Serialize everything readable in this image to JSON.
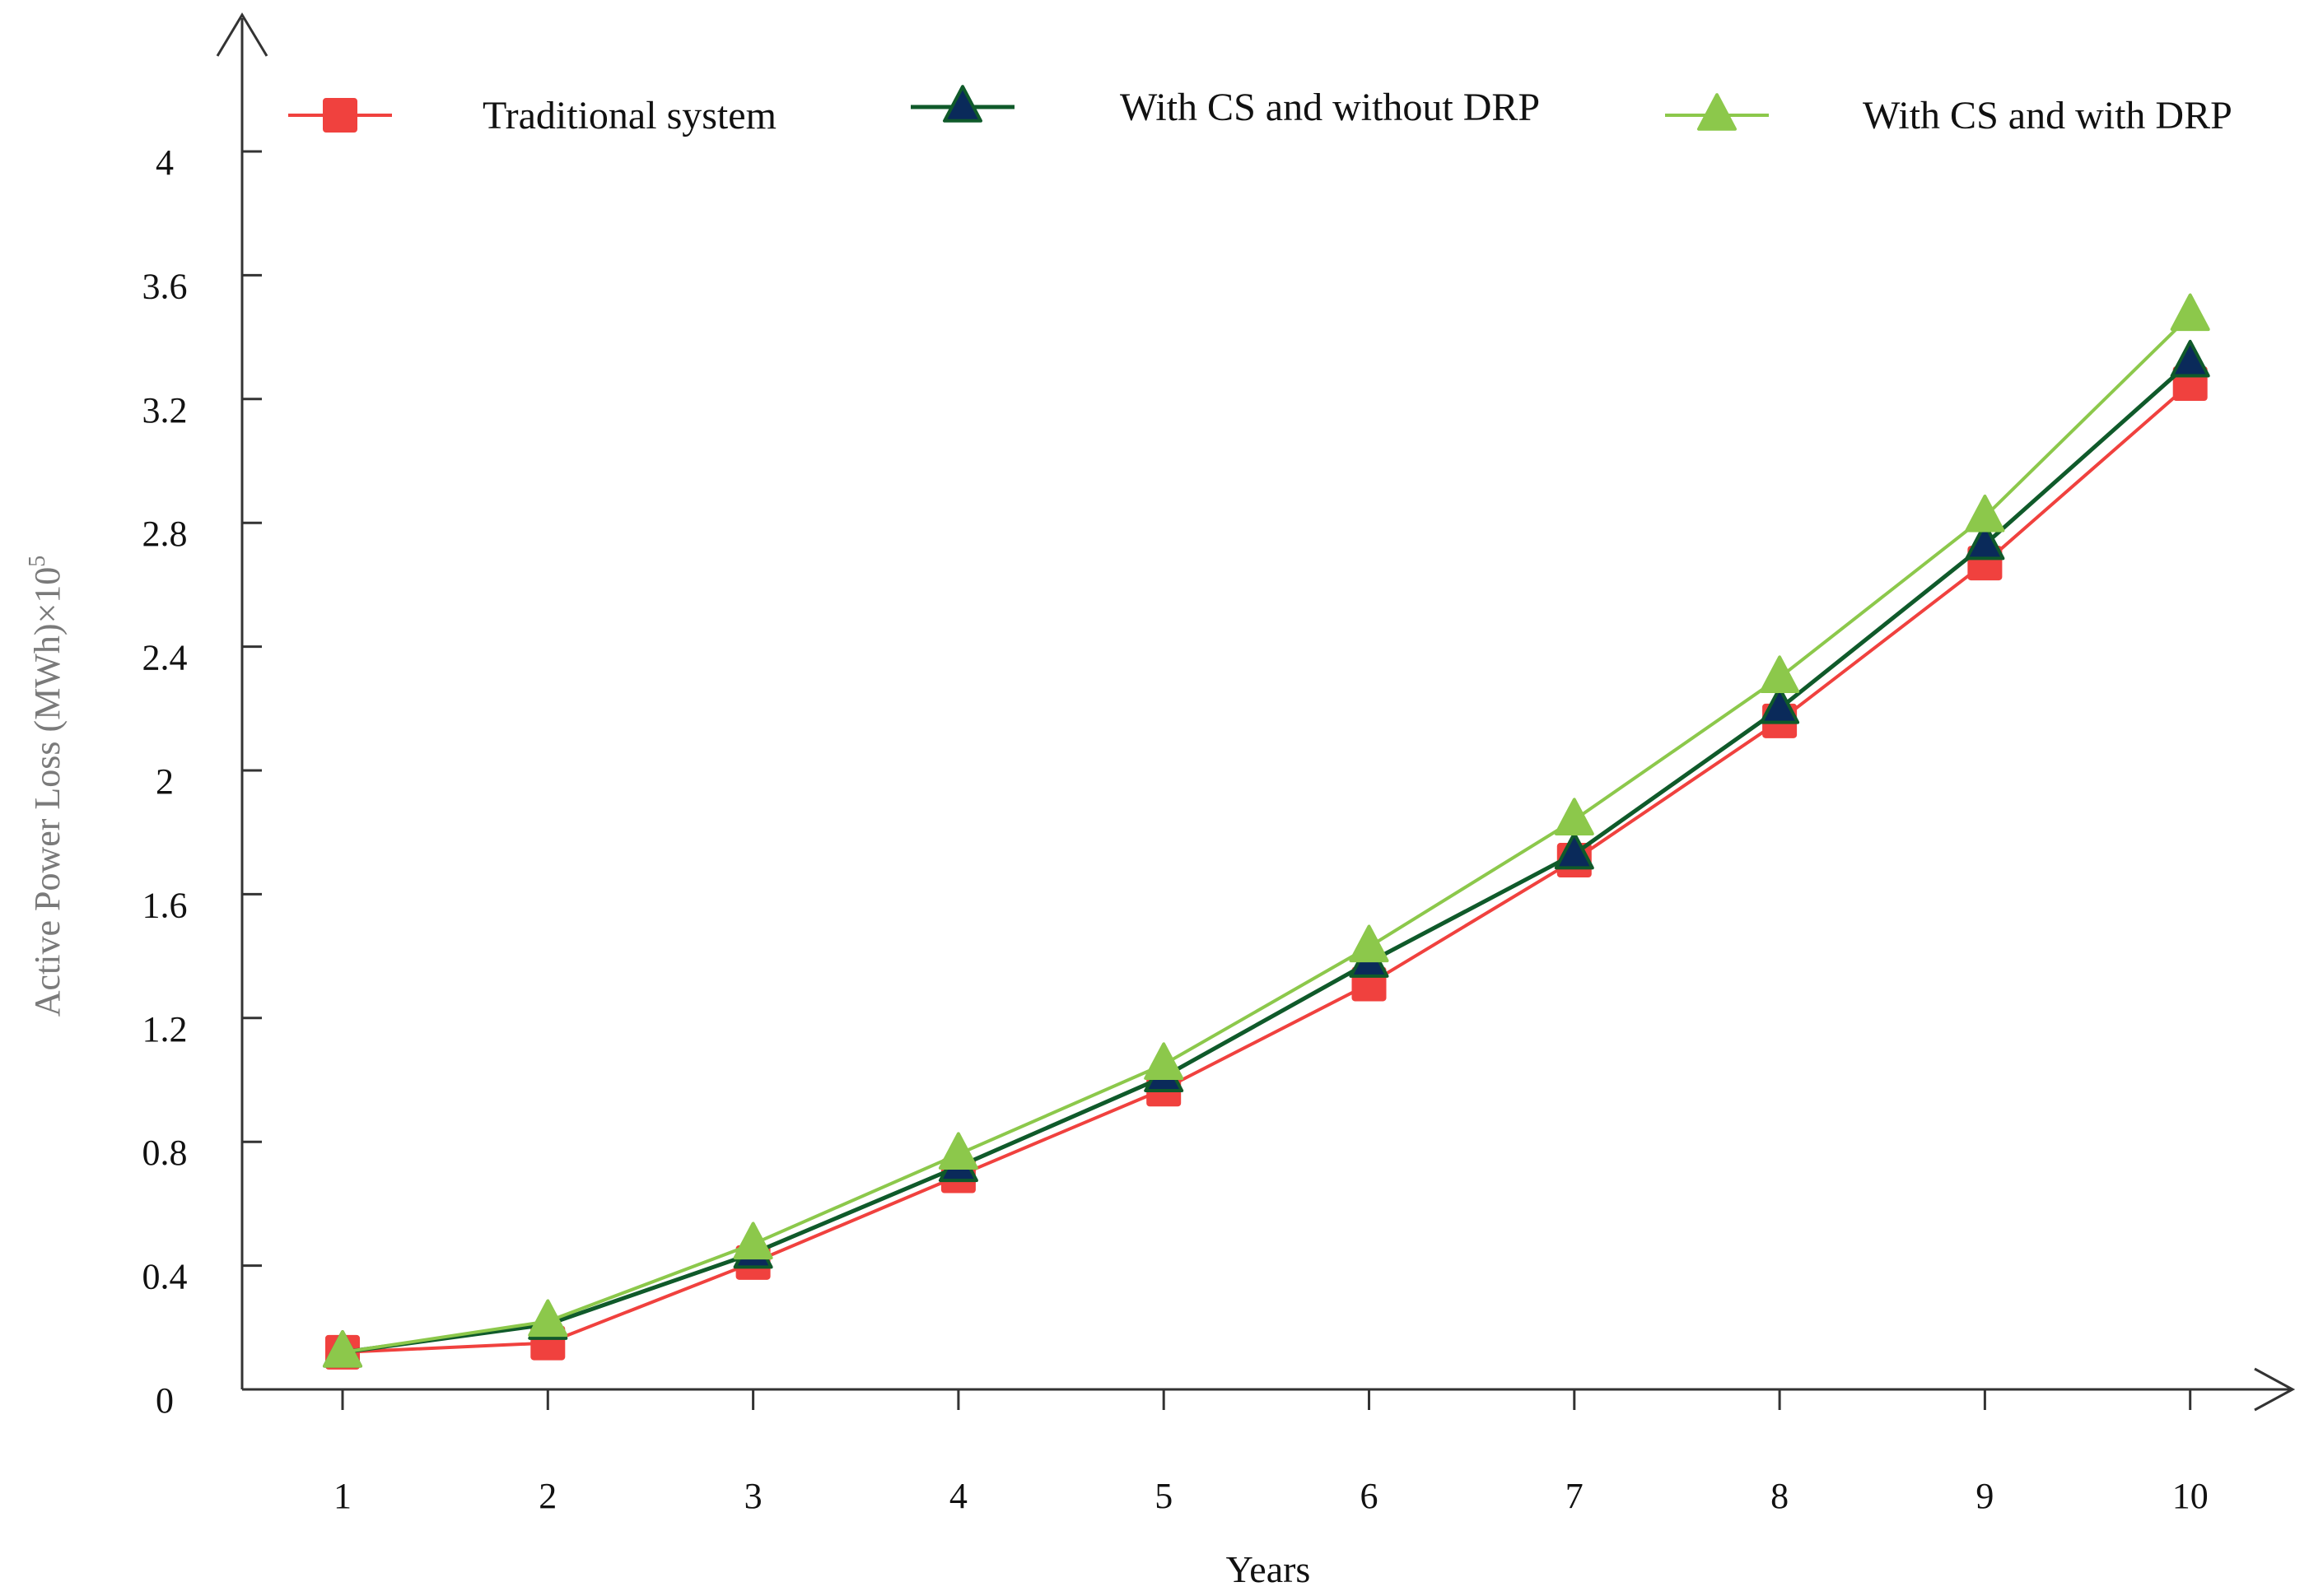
{
  "chart_data": {
    "type": "line",
    "title": "",
    "xlabel": "Years",
    "ylabel": "Active Power Loss (MWh)×10",
    "ylabel_exponent": "5",
    "x": [
      1,
      2,
      3,
      4,
      5,
      6,
      7,
      8,
      9,
      10
    ],
    "x_tick_labels": [
      "1",
      "2",
      "3",
      "4",
      "5",
      "6",
      "7",
      "8",
      "9",
      "10"
    ],
    "y_ticks": [
      0,
      0.4,
      0.8,
      1.2,
      1.6,
      2,
      2.4,
      2.8,
      3.2,
      3.6,
      4
    ],
    "y_tick_labels": [
      "0",
      "0.4",
      "0.8",
      "1.2",
      "1.6",
      "2",
      "2.4",
      "2.8",
      "3.2",
      "3.6",
      "4"
    ],
    "ylim": [
      0,
      4.2
    ],
    "grid": false,
    "legend_position": "top",
    "series": [
      {
        "name": "Traditional system",
        "marker": "square",
        "color": "#f0413e",
        "values": [
          0.12,
          0.15,
          0.41,
          0.69,
          0.97,
          1.31,
          1.71,
          2.16,
          2.67,
          3.25
        ]
      },
      {
        "name": "With CS and without DRP",
        "marker": "triangle",
        "color": "#0f5a2a",
        "marker_fill": "#0a2a5a",
        "values": [
          0.12,
          0.21,
          0.44,
          0.72,
          1.01,
          1.38,
          1.73,
          2.2,
          2.73,
          3.32
        ]
      },
      {
        "name": "With CS and with DRP",
        "marker": "triangle",
        "color": "#8cc84b",
        "values": [
          0.12,
          0.22,
          0.47,
          0.76,
          1.05,
          1.43,
          1.84,
          2.3,
          2.82,
          3.47
        ]
      }
    ]
  }
}
